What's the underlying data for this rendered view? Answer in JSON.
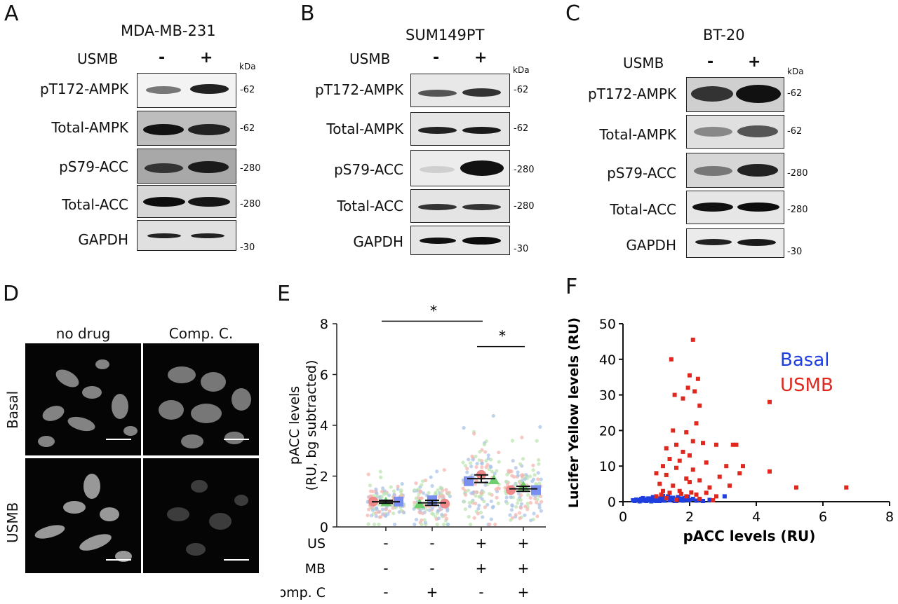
{
  "panels": {
    "A": "A",
    "B": "B",
    "C": "C",
    "D": "D",
    "E": "E",
    "F": "F"
  },
  "western": [
    {
      "letter": "A",
      "cell_line": "MDA-MB-231",
      "treatment_label": "USMB",
      "lanes": [
        "-",
        "+"
      ],
      "kda": "kDa",
      "rows": [
        "pT172-AMPK",
        "Total-AMPK",
        "pS79-ACC",
        "Total-ACC",
        "GAPDH"
      ],
      "mw": [
        "-62",
        "-62",
        "-280",
        "-280",
        "-30"
      ]
    },
    {
      "letter": "B",
      "cell_line": "SUM149PT",
      "treatment_label": "USMB",
      "lanes": [
        "-",
        "+"
      ],
      "kda": "kDa",
      "rows": [
        "pT172-AMPK",
        "Total-AMPK",
        "pS79-ACC",
        "Total-ACC",
        "GAPDH"
      ],
      "mw": [
        "-62",
        "-62",
        "-280",
        "-280",
        "-30"
      ]
    },
    {
      "letter": "C",
      "cell_line": "BT-20",
      "treatment_label": "USMB",
      "lanes": [
        "-",
        "+"
      ],
      "kda": "kDa",
      "rows": [
        "pT172-AMPK",
        "Total-AMPK",
        "pS79-ACC",
        "Total-ACC",
        "GAPDH"
      ],
      "mw": [
        "-62",
        "-62",
        "-280",
        "-280",
        "-30"
      ]
    }
  ],
  "microscopy": {
    "columns": [
      "no drug",
      "Comp. C."
    ],
    "rows": [
      "Basal",
      "USMB"
    ]
  },
  "chart_data": [
    {
      "panel": "E",
      "type": "scatter",
      "ylabel": "pACC levels\n(RU, bg subtracted)",
      "ylim": [
        0,
        8
      ],
      "yticks": [
        0,
        2,
        4,
        6,
        8
      ],
      "groups": [
        {
          "US": "-",
          "MB": "-",
          "CompC": "-",
          "mean": 0.99,
          "sem": 0.06,
          "replicate_means": [
            1.0,
            0.98,
            1.0
          ]
        },
        {
          "US": "-",
          "MB": "-",
          "CompC": "+",
          "mean": 0.95,
          "sem": 0.1,
          "replicate_means": [
            0.9,
            1.05,
            0.92
          ]
        },
        {
          "US": "+",
          "MB": "+",
          "CompC": "-",
          "mean": 1.9,
          "sem": 0.15,
          "replicate_means": [
            1.8,
            2.05,
            1.85
          ]
        },
        {
          "US": "+",
          "MB": "+",
          "CompC": "+",
          "mean": 1.5,
          "sem": 0.1,
          "replicate_means": [
            1.45,
            1.6,
            1.45
          ]
        }
      ],
      "row_labels": [
        "US",
        "MB",
        "Comp. C"
      ],
      "significance": [
        {
          "from": 0,
          "to": 2,
          "y": 8.1,
          "label": "*"
        },
        {
          "from": 2,
          "to": 3,
          "y": 7.1,
          "label": "*"
        }
      ]
    },
    {
      "panel": "F",
      "type": "scatter",
      "xlabel": "pACC levels (RU)",
      "ylabel": "Lucifer  Yellow levels (RU)",
      "xlim": [
        0,
        8
      ],
      "ylim": [
        0,
        50
      ],
      "xticks": [
        0,
        2,
        4,
        6,
        8
      ],
      "yticks": [
        0,
        10,
        20,
        30,
        40,
        50
      ],
      "legend": [
        "Basal",
        "USMB"
      ],
      "legend_colors": [
        "#1f3ee0",
        "#e0281f"
      ],
      "series": [
        {
          "name": "Basal",
          "color": "#1f3ee0",
          "points": [
            [
              0.35,
              0.2
            ],
            [
              0.45,
              0.5
            ],
            [
              0.5,
              0.1
            ],
            [
              0.55,
              0.8
            ],
            [
              0.6,
              0.3
            ],
            [
              0.65,
              0.6
            ],
            [
              0.7,
              0.2
            ],
            [
              0.75,
              0.9
            ],
            [
              0.8,
              0.4
            ],
            [
              0.85,
              0.1
            ],
            [
              0.9,
              0.7
            ],
            [
              0.95,
              0.3
            ],
            [
              1.0,
              1.0
            ],
            [
              1.05,
              0.5
            ],
            [
              1.1,
              0.2
            ],
            [
              1.15,
              1.2
            ],
            [
              1.2,
              0.6
            ],
            [
              1.25,
              0.3
            ],
            [
              1.3,
              0.9
            ],
            [
              1.35,
              1.5
            ],
            [
              1.4,
              0.4
            ],
            [
              1.45,
              0.8
            ],
            [
              1.5,
              1.1
            ],
            [
              1.55,
              0.2
            ],
            [
              1.6,
              0.7
            ],
            [
              1.65,
              1.3
            ],
            [
              1.7,
              0.5
            ],
            [
              1.75,
              0.9
            ],
            [
              1.8,
              0.3
            ],
            [
              1.85,
              1.0
            ],
            [
              1.9,
              0.6
            ],
            [
              1.95,
              1.4
            ],
            [
              2.0,
              0.4
            ],
            [
              2.1,
              0.8
            ],
            [
              2.2,
              0.3
            ],
            [
              2.3,
              0.6
            ],
            [
              2.4,
              0.2
            ],
            [
              2.6,
              0.5
            ],
            [
              3.05,
              1.5
            ],
            [
              0.4,
              0.6
            ],
            [
              0.6,
              1.0
            ],
            [
              0.8,
              0.9
            ],
            [
              1.0,
              0.2
            ],
            [
              1.2,
              1.6
            ],
            [
              1.4,
              1.1
            ],
            [
              1.6,
              0.2
            ],
            [
              1.8,
              0.8
            ],
            [
              0.3,
              0.4
            ],
            [
              0.9,
              1.3
            ],
            [
              1.1,
              0.9
            ]
          ]
        },
        {
          "name": "USMB",
          "color": "#e0281f",
          "points": [
            [
              2.1,
              45.5
            ],
            [
              1.45,
              40
            ],
            [
              2.0,
              35.5
            ],
            [
              2.25,
              34.5
            ],
            [
              1.95,
              32
            ],
            [
              2.15,
              31
            ],
            [
              1.55,
              30
            ],
            [
              1.8,
              29
            ],
            [
              2.3,
              27
            ],
            [
              4.4,
              28
            ],
            [
              2.2,
              22
            ],
            [
              1.5,
              20
            ],
            [
              1.9,
              19.5
            ],
            [
              2.1,
              17
            ],
            [
              1.6,
              16
            ],
            [
              2.4,
              16.5
            ],
            [
              3.3,
              16
            ],
            [
              3.4,
              16
            ],
            [
              2.8,
              16
            ],
            [
              1.3,
              15
            ],
            [
              1.8,
              14
            ],
            [
              2.0,
              13
            ],
            [
              1.4,
              12
            ],
            [
              1.7,
              11.5
            ],
            [
              2.5,
              11
            ],
            [
              1.2,
              10
            ],
            [
              1.6,
              9.5
            ],
            [
              2.1,
              9
            ],
            [
              3.1,
              10
            ],
            [
              3.6,
              10
            ],
            [
              3.5,
              8
            ],
            [
              4.4,
              8.5
            ],
            [
              1.0,
              8
            ],
            [
              1.3,
              7.5
            ],
            [
              1.9,
              6.5
            ],
            [
              2.3,
              6
            ],
            [
              2.9,
              7
            ],
            [
              1.1,
              5
            ],
            [
              1.5,
              4.5
            ],
            [
              2.0,
              5.5
            ],
            [
              2.6,
              4
            ],
            [
              3.2,
              4.5
            ],
            [
              5.2,
              4
            ],
            [
              6.7,
              4
            ],
            [
              1.2,
              3
            ],
            [
              1.4,
              2.5
            ],
            [
              1.7,
              3
            ],
            [
              2.2,
              2
            ],
            [
              2.5,
              2.5
            ],
            [
              2.8,
              1.5
            ],
            [
              1.0,
              1.5
            ],
            [
              1.3,
              1
            ],
            [
              1.6,
              0.5
            ],
            [
              1.9,
              1.5
            ],
            [
              2.3,
              0.8
            ],
            [
              2.7,
              0.4
            ],
            [
              1.15,
              2
            ],
            [
              1.75,
              2.2
            ],
            [
              2.05,
              2.6
            ]
          ]
        }
      ]
    }
  ]
}
